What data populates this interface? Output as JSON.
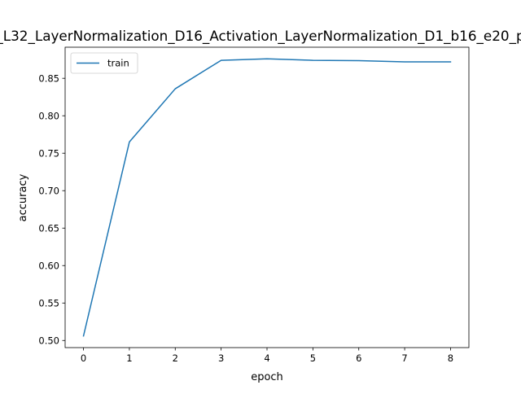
{
  "chart_data": {
    "type": "line",
    "title": "_L32_LayerNormalization_D16_Activation_LayerNormalization_D1_b16_e20_p",
    "xlabel": "epoch",
    "ylabel": "accuracy",
    "xlim": [
      -0.4,
      8.4
    ],
    "ylim": [
      0.4905,
      0.8915
    ],
    "x_ticks": [
      0,
      1,
      2,
      3,
      4,
      5,
      6,
      7,
      8
    ],
    "y_ticks": [
      0.5,
      0.55,
      0.6,
      0.65,
      0.7,
      0.75,
      0.8,
      0.85
    ],
    "y_tick_labels": [
      "0.50",
      "0.55",
      "0.60",
      "0.65",
      "0.70",
      "0.75",
      "0.80",
      "0.85"
    ],
    "grid": false,
    "legend_position": "upper-left",
    "series": [
      {
        "name": "train",
        "color": "#1f77b4",
        "x": [
          0,
          1,
          2,
          3,
          4,
          5,
          6,
          7,
          8
        ],
        "values": [
          0.506,
          0.765,
          0.836,
          0.874,
          0.876,
          0.874,
          0.8735,
          0.872,
          0.872
        ]
      }
    ]
  }
}
